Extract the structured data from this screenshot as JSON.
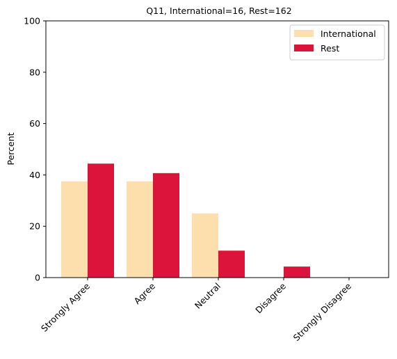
{
  "chart_data": {
    "type": "bar",
    "title": "Q11, International=16, Rest=162",
    "xlabel": "",
    "ylabel": "Percent",
    "ylim": [
      0,
      100
    ],
    "yticks": [
      0,
      20,
      40,
      60,
      80,
      100
    ],
    "categories": [
      "Strongly Agree",
      "Agree",
      "Neutral",
      "Disagree",
      "Strongly Disagree"
    ],
    "series": [
      {
        "name": "International",
        "color": "#FDDEAD",
        "values": [
          37.5,
          37.5,
          25.0,
          0,
          0
        ]
      },
      {
        "name": "Rest",
        "color": "#DC143C",
        "values": [
          44.4,
          40.7,
          10.5,
          4.3,
          0
        ]
      }
    ],
    "legend_position": "top-right",
    "grid": false
  }
}
